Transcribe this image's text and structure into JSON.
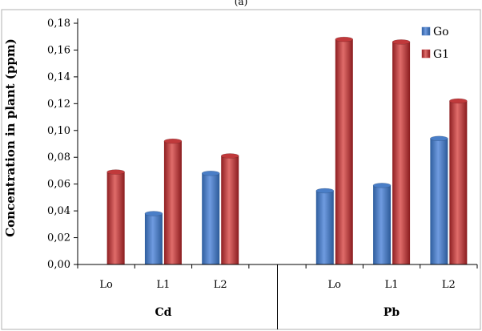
{
  "chart_data": {
    "type": "bar",
    "panel_label": "(a)",
    "ylabel": "Concentration in plant (ppm)",
    "ylim": [
      0,
      0.18
    ],
    "yticks": [
      "0,00",
      "0,02",
      "0,04",
      "0,06",
      "0,08",
      "0,10",
      "0,12",
      "0,14",
      "0,16",
      "0,18"
    ],
    "grid": false,
    "legend_position": "top-right",
    "groups": [
      {
        "name": "Cd",
        "categories": [
          "L0",
          "L1",
          "L2"
        ]
      },
      {
        "name": "Pb",
        "categories": [
          "L0",
          "L1",
          "L2"
        ]
      }
    ],
    "category_display": [
      "Lo",
      "L1",
      "L2",
      "Lo",
      "L1",
      "L2"
    ],
    "series": [
      {
        "name": "G0",
        "display_name": "Go",
        "color": "#4a7ec7",
        "values": [
          0,
          0.038,
          0.068,
          0.055,
          0.059,
          0.094
        ]
      },
      {
        "name": "G1",
        "display_name": "G1",
        "color": "#c0393b",
        "values": [
          0.069,
          0.092,
          0.081,
          0.168,
          0.166,
          0.122
        ]
      }
    ]
  }
}
